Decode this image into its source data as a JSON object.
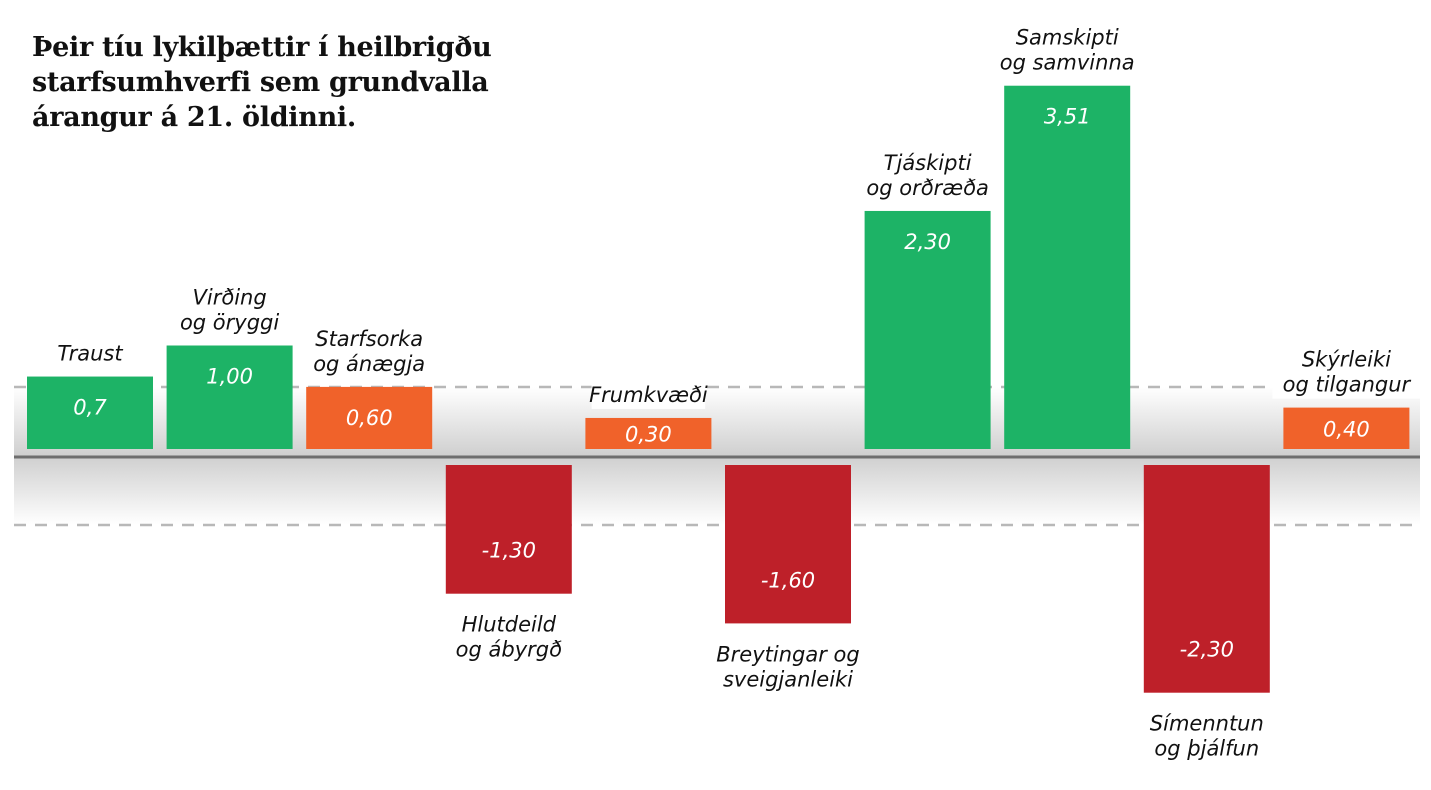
{
  "title_lines": [
    "Þeir tíu lykilþættir í heilbrigðu",
    "starfsumhverfi sem grundvalla",
    "árangur á 21. öldinni."
  ],
  "colors": {
    "positive_high": "#1db366",
    "positive_low": "#f0622a",
    "negative": "#be2029",
    "baseline": "#6e6e6e",
    "dashed": "#b8b8b8"
  },
  "chart_data": {
    "type": "bar",
    "title": "Þeir tíu lykilþættir í heilbrigðu starfsumhverfi sem grundvalla árangur á 21. öldinni.",
    "categories": [
      [
        "Traust"
      ],
      [
        "Virðing",
        "og öryggi"
      ],
      [
        "Starfsorka",
        "og ánægja"
      ],
      [
        "Hlutdeild",
        "og ábyrgð"
      ],
      [
        "Frumkvæði"
      ],
      [
        "Breytingar og",
        "sveigjanleiki"
      ],
      [
        "Tjáskipti",
        "og orðræða"
      ],
      [
        "Samskipti",
        "og samvinna"
      ],
      [
        "Símenntun",
        "og þjálfun"
      ],
      [
        "Skýrleiki",
        "og tilgangur"
      ]
    ],
    "values": [
      0.7,
      1.0,
      0.6,
      -1.3,
      0.3,
      -1.6,
      2.3,
      3.51,
      -2.3,
      0.4
    ],
    "value_labels": [
      "0,7",
      "1,00",
      "0,60",
      "-1,30",
      "0,30",
      "-1,60",
      "2,30",
      "3,51",
      "-2,30",
      "0,40"
    ],
    "color_groups": [
      "positive_high",
      "positive_high",
      "positive_low",
      "negative",
      "positive_low",
      "negative",
      "positive_high",
      "positive_high",
      "negative",
      "positive_low"
    ],
    "xlabel": "",
    "ylabel": "",
    "ylim": [
      -2.3,
      3.51
    ],
    "grid": false,
    "legend": "none"
  }
}
